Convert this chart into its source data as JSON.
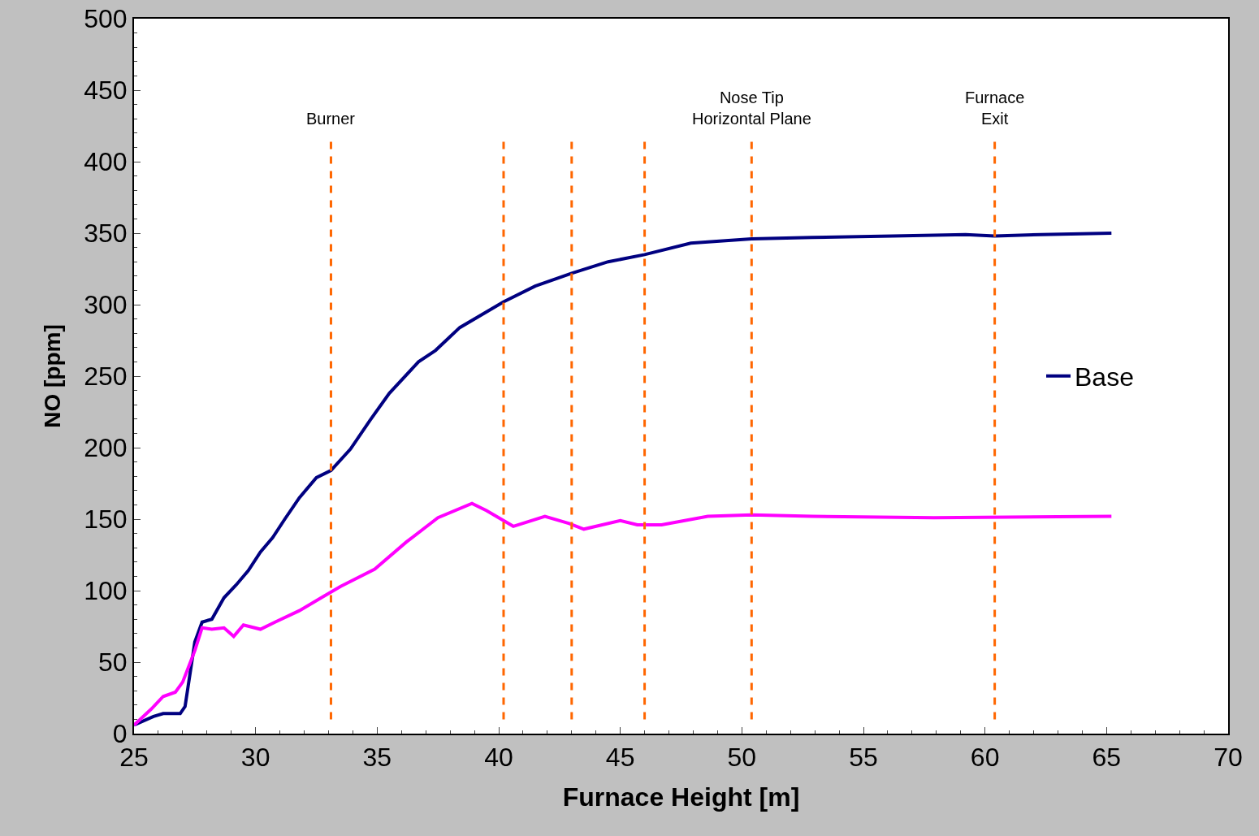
{
  "chart_data": {
    "type": "line",
    "xlabel": "Furnace Height [m]",
    "ylabel": "NO [ppm]",
    "xlim": [
      25,
      70
    ],
    "xticks": [
      25,
      30,
      35,
      40,
      45,
      50,
      55,
      60,
      65,
      70
    ],
    "ylim": [
      0,
      500
    ],
    "yticks": [
      0,
      50,
      100,
      150,
      200,
      250,
      300,
      350,
      400,
      450,
      500
    ],
    "grid": false,
    "legend": "right",
    "marker": "none",
    "line_style": "solid",
    "series": [
      {
        "name": "Base",
        "color": "#000080",
        "x": [
          25,
          25.8,
          26.2,
          26.9,
          27.1,
          27.5,
          27.8,
          28.2,
          28.7,
          29.2,
          29.7,
          30.2,
          30.7,
          31.2,
          31.8,
          32.5,
          33.1,
          33.9,
          34.7,
          35.5,
          36.7,
          37.4,
          38.4,
          40.2,
          41.5,
          43,
          44.5,
          46,
          47.9,
          50.4,
          52.9,
          56.2,
          59.2,
          60.4,
          62.3,
          65.2
        ],
        "values": [
          6,
          12,
          14,
          14,
          19,
          64,
          78,
          80,
          95,
          104,
          114,
          127,
          137,
          150,
          165,
          179,
          184,
          199,
          219,
          238,
          260,
          268,
          284,
          302,
          313,
          322,
          330,
          335,
          343,
          346,
          347,
          348,
          349,
          348,
          349,
          350
        ]
      },
      {
        "color": "#ff00ff",
        "x": [
          25,
          25.7,
          26.2,
          26.7,
          27,
          27.5,
          27.8,
          28.2,
          28.7,
          29.1,
          29.5,
          30.2,
          30.8,
          31.8,
          32.7,
          33.5,
          34.9,
          36.2,
          37.5,
          38.9,
          39.5,
          40.6,
          41.9,
          42.9,
          43.5,
          45,
          45.7,
          46.7,
          48.6,
          50.4,
          52.9,
          57.9,
          65.2
        ],
        "values": [
          6,
          17,
          26,
          29,
          36,
          58,
          74,
          73,
          74,
          68,
          76,
          73,
          78,
          86,
          95,
          103,
          115,
          134,
          151,
          161,
          156,
          145,
          152,
          147,
          143,
          149,
          146,
          146,
          152,
          153,
          152,
          151,
          152
        ]
      }
    ],
    "ref_lines": [
      {
        "axis": "x",
        "value": 33.1,
        "label": "Burner",
        "color": "#ff6600",
        "line_style": "dashed"
      },
      {
        "axis": "x",
        "value": 40.2,
        "color": "#ff6600",
        "line_style": "dashed"
      },
      {
        "axis": "x",
        "value": 43,
        "color": "#ff6600",
        "line_style": "dashed"
      },
      {
        "axis": "x",
        "value": 46,
        "color": "#ff6600",
        "line_style": "dashed"
      },
      {
        "axis": "x",
        "value": 50.4,
        "label": "Nose Tip\nHorizontal Plane",
        "color": "#ff6600",
        "line_style": "dashed"
      },
      {
        "axis": "x",
        "value": 60.4,
        "label": "Furnace\nExit",
        "color": "#ff6600",
        "line_style": "dashed"
      }
    ]
  }
}
